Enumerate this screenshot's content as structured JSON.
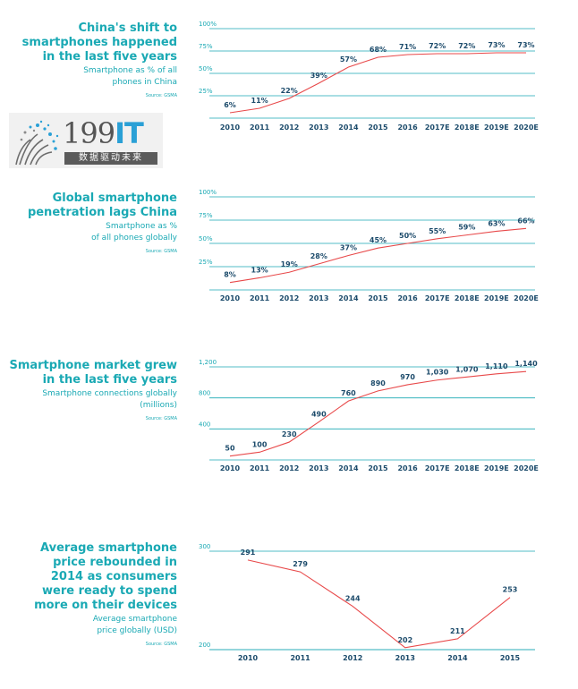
{
  "logo": {
    "text": "199",
    "accent": "IT",
    "tagline": "数据驱动未来"
  },
  "colors": {
    "teal": "#1aa9b4",
    "red": "#e8494a",
    "navy": "#1c4b6b"
  },
  "panels": [
    {
      "title": [
        "China's shift to",
        "smartphones happened",
        "in the last five years"
      ],
      "subtitle": [
        "Smartphone as % of all",
        "phones in China"
      ],
      "source": "Source: GSMA"
    },
    {
      "title": [
        "Global smartphone",
        "penetration lags China"
      ],
      "subtitle": [
        "Smartphone as %",
        "of all phones globally"
      ],
      "source": "Source: GSMA"
    },
    {
      "title": [
        "Smartphone market grew",
        "in the last five years"
      ],
      "subtitle": [
        "Smartphone connections globally",
        "(millions)"
      ],
      "source": "Source: GSMA"
    },
    {
      "title": [
        "Average smartphone",
        "price rebounded in",
        "2014 as consumers",
        "were ready to spend",
        "more on their devices"
      ],
      "subtitle": [
        "Average smartphone",
        "price globally (USD)"
      ],
      "source": "Source: GSMA"
    }
  ],
  "chart_data": [
    {
      "type": "line",
      "title": "China's shift to smartphones happened in the last five years",
      "ylabel": "Smartphone as % of all phones in China",
      "x": [
        "2010",
        "2011",
        "2012",
        "2013",
        "2014",
        "2015",
        "2016",
        "2017E",
        "2018E",
        "2019E",
        "2020E"
      ],
      "values": [
        6,
        11,
        22,
        39,
        57,
        68,
        71,
        72,
        72,
        73,
        73
      ],
      "value_labels": [
        "6%",
        "11%",
        "22%",
        "39%",
        "57%",
        "68%",
        "71%",
        "72%",
        "72%",
        "73%",
        "73%"
      ],
      "ylim": [
        0,
        100
      ],
      "yticks": [
        25,
        50,
        75,
        100
      ],
      "ytick_labels": [
        "25%",
        "50%",
        "75%",
        "100%"
      ]
    },
    {
      "type": "line",
      "title": "Global smartphone penetration lags China",
      "ylabel": "Smartphone as % of all phones globally",
      "x": [
        "2010",
        "2011",
        "2012",
        "2013",
        "2014",
        "2015",
        "2016",
        "2017E",
        "2018E",
        "2019E",
        "2020E"
      ],
      "values": [
        8,
        13,
        19,
        28,
        37,
        45,
        50,
        55,
        59,
        63,
        66
      ],
      "value_labels": [
        "8%",
        "13%",
        "19%",
        "28%",
        "37%",
        "45%",
        "50%",
        "55%",
        "59%",
        "63%",
        "66%"
      ],
      "ylim": [
        0,
        100
      ],
      "yticks": [
        25,
        50,
        75,
        100
      ],
      "ytick_labels": [
        "25%",
        "50%",
        "75%",
        "100%"
      ]
    },
    {
      "type": "line",
      "title": "Smartphone market grew in the last five years",
      "ylabel": "Smartphone connections globally (millions)",
      "x": [
        "2010",
        "2011",
        "2012",
        "2013",
        "2014",
        "2015",
        "2016",
        "2017E",
        "2018E",
        "2019E",
        "2020E"
      ],
      "values": [
        50,
        100,
        230,
        490,
        760,
        890,
        970,
        1030,
        1070,
        1110,
        1140
      ],
      "value_labels": [
        "50",
        "100",
        "230",
        "490",
        "760",
        "890",
        "970",
        "1,030",
        "1,070",
        "1,110",
        "1,140"
      ],
      "ylim": [
        0,
        1200
      ],
      "yticks": [
        400,
        800,
        1200
      ],
      "ytick_labels": [
        "400",
        "800",
        "1,200"
      ]
    },
    {
      "type": "line",
      "title": "Average smartphone price rebounded in 2014 as consumers were ready to spend more on their devices",
      "ylabel": "Average smartphone price globally (USD)",
      "x": [
        "2010",
        "2011",
        "2012",
        "2013",
        "2014",
        "2015"
      ],
      "values": [
        291,
        279,
        244,
        202,
        211,
        253
      ],
      "value_labels": [
        "291",
        "279",
        "244",
        "202",
        "211",
        "253"
      ],
      "ylim": [
        200,
        300
      ],
      "yticks": [
        200,
        300
      ],
      "ytick_labels": [
        "200",
        "300"
      ]
    }
  ]
}
